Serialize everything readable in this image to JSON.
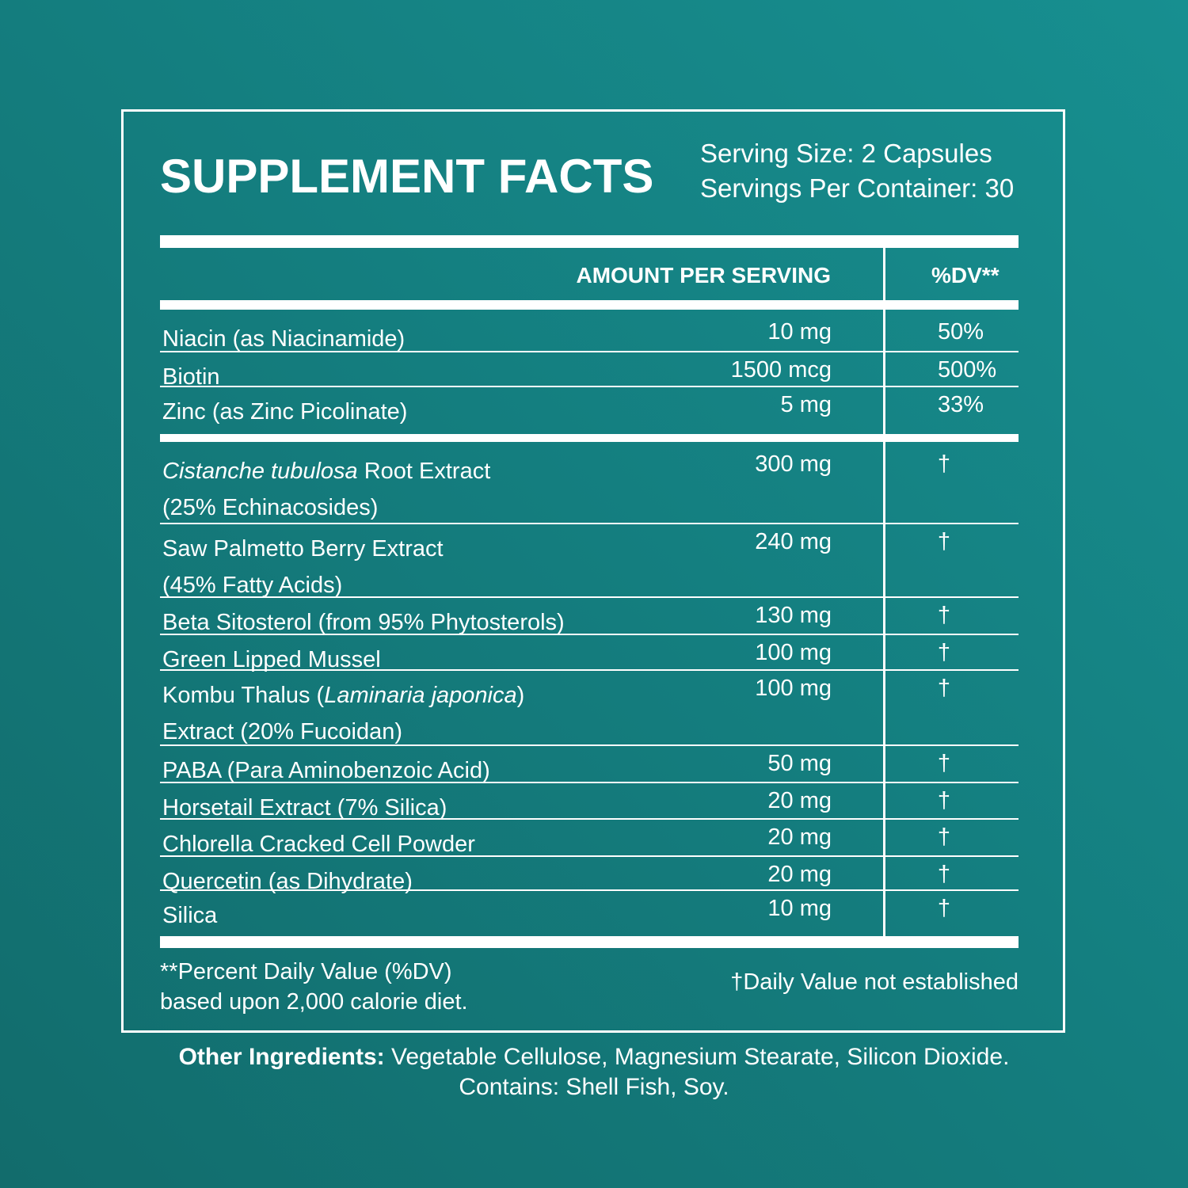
{
  "title": "SUPPLEMENT FACTS",
  "serving_size": "Serving Size: 2 Capsules",
  "servings_per_container": "Servings Per Container: 30",
  "headers": {
    "amount": "AMOUNT PER SERVING",
    "dv": "%DV**"
  },
  "colors": {
    "background": "#147d7e",
    "text": "#ffffff"
  },
  "vitamins": [
    {
      "name": [
        {
          "text": "Niacin (as Niacinamide)",
          "italic": false
        }
      ],
      "amount": "10 mg",
      "dv": "50%"
    },
    {
      "name": [
        {
          "text": "Biotin",
          "italic": false
        }
      ],
      "amount": "1500 mcg",
      "dv": "500%"
    },
    {
      "name": [
        {
          "text": "Zinc (as Zinc Picolinate)",
          "italic": false
        }
      ],
      "amount": "5 mg",
      "dv": "33%"
    }
  ],
  "blend": [
    {
      "name": [
        {
          "text": "Cistanche tubulosa",
          "italic": true
        },
        {
          "text": " Root Extract (25% Echinacosides)",
          "italic": false
        }
      ],
      "amount": "300 mg",
      "dv": "†"
    },
    {
      "name": [
        {
          "text": "Saw Palmetto Berry Extract (45% Fatty Acids)",
          "italic": false
        }
      ],
      "amount": "240 mg",
      "dv": "†"
    },
    {
      "name": [
        {
          "text": "Beta Sitosterol (from 95% Phytosterols)",
          "italic": false
        }
      ],
      "amount": "130 mg",
      "dv": "†"
    },
    {
      "name": [
        {
          "text": "Green Lipped Mussel",
          "italic": false
        }
      ],
      "amount": "100 mg",
      "dv": "†"
    },
    {
      "name": [
        {
          "text": "Kombu Thalus (",
          "italic": false
        },
        {
          "text": "Laminaria japonica",
          "italic": true
        },
        {
          "text": ") Extract (20% Fucoidan)",
          "italic": false
        }
      ],
      "amount": "100 mg",
      "dv": "†"
    },
    {
      "name": [
        {
          "text": "PABA (Para Aminobenzoic Acid)",
          "italic": false
        }
      ],
      "amount": "50 mg",
      "dv": "†"
    },
    {
      "name": [
        {
          "text": "Horsetail Extract (7% Silica)",
          "italic": false
        }
      ],
      "amount": "20 mg",
      "dv": "†"
    },
    {
      "name": [
        {
          "text": "Chlorella Cracked Cell Powder",
          "italic": false
        }
      ],
      "amount": "20 mg",
      "dv": "†"
    },
    {
      "name": [
        {
          "text": "Quercetin (as Dihydrate)",
          "italic": false
        }
      ],
      "amount": "20 mg",
      "dv": "†"
    },
    {
      "name": [
        {
          "text": "Silica",
          "italic": false
        }
      ],
      "amount": "10 mg",
      "dv": "†"
    }
  ],
  "footnote_dv": "**Percent Daily Value (%DV) based upon 2,000 calorie diet.",
  "footnote_dagger": "†Daily Value not established",
  "other_ingredients_label": "Other Ingredients:",
  "other_ingredients": " Vegetable Cellulose, Magnesium Stearate, Silicon Dioxide.",
  "contains": "Contains: Shell Fish, Soy."
}
